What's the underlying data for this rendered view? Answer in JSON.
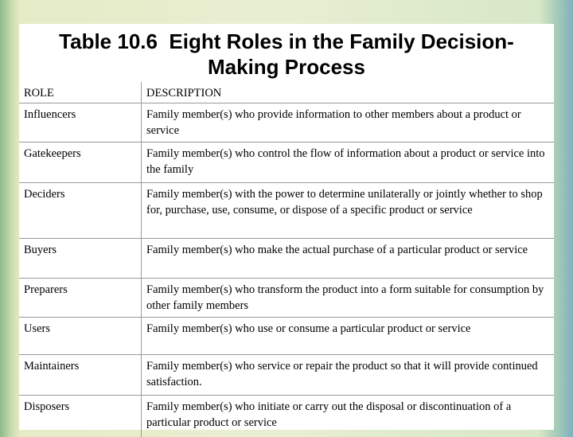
{
  "header": {
    "title": "Table 10.6  Eight Roles in the Family Decision-Making Process"
  },
  "table": {
    "header": [
      "ROLE",
      "DESCRIPTION"
    ],
    "rows": [
      [
        "Influencers",
        "Family member(s) who provide information to other members about a product or service"
      ],
      [
        "Gatekeepers",
        "Family member(s) who control the flow of information about a product or service into the family"
      ],
      [
        "Deciders",
        "Family member(s) with the power to determine unilaterally or jointly whether to shop for, purchase, use, consume, or dispose of a specific product or service"
      ],
      [
        "Buyers",
        "Family member(s) who make the actual purchase of a particular product or service"
      ],
      [
        "Preparers",
        "Family member(s) who transform the product into a form suitable for consumption by other family members"
      ],
      [
        "Users",
        "Family member(s) who use or consume a particular product or service"
      ],
      [
        "Maintainers",
        "Family member(s) who service or repair the product so that it will provide continued satisfaction."
      ],
      [
        "Disposers",
        "Family member(s) who initiate or carry out the disposal or discontinuation of a particular product or service"
      ]
    ]
  }
}
